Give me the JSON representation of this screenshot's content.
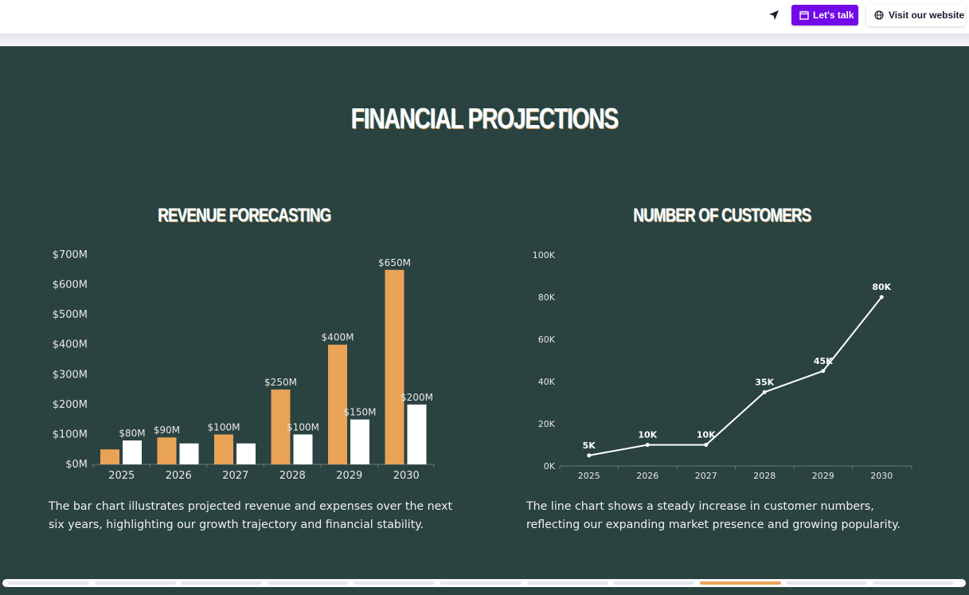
{
  "header": {
    "nav_icon": "send-arrow-icon",
    "lets_talk": {
      "label": "Let's talk",
      "icon": "calendar-icon",
      "color": "#7209e8"
    },
    "visit_website": {
      "label": "Visit our website",
      "icon": "globe-icon"
    }
  },
  "page": {
    "title": "FINANCIAL PROJECTIONS",
    "background": "#2a4240"
  },
  "revenue": {
    "title": "REVENUE FORECASTING",
    "description": "The bar chart illustrates projected revenue and expenses over the next six years, highlighting our growth trajectory and financial stability."
  },
  "customers": {
    "title": "NUMBER OF CUSTOMERS",
    "description": "The line chart shows a steady increase in customer numbers, reflecting our expanding market presence and growing popularity."
  },
  "progress": {
    "segments": 11,
    "active_index": 8,
    "active_color": "#e9a357"
  },
  "chart_data": [
    {
      "type": "bar",
      "title": "REVENUE FORECASTING",
      "categories": [
        "2025",
        "2026",
        "2027",
        "2028",
        "2029",
        "2030"
      ],
      "series": [
        {
          "name": "Revenue",
          "color": "#e9a357",
          "values": [
            50,
            90,
            100,
            250,
            400,
            650
          ],
          "labels": [
            "",
            "$90M",
            "$100M",
            "$250M",
            "$400M",
            "$650M"
          ]
        },
        {
          "name": "Expenses",
          "color": "#ffffff",
          "values": [
            80,
            70,
            70,
            100,
            150,
            200
          ],
          "labels": [
            "$80M",
            "",
            "",
            "$100M",
            "$150M",
            "$200M"
          ]
        }
      ],
      "yticks": [
        "$0M",
        "$100M",
        "$200M",
        "$300M",
        "$400M",
        "$500M",
        "$600M",
        "$700M"
      ],
      "ylim": [
        0,
        700
      ],
      "xlabel": "",
      "ylabel": "",
      "grid": false,
      "legend": "none"
    },
    {
      "type": "line",
      "title": "NUMBER OF CUSTOMERS",
      "categories": [
        "2025",
        "2026",
        "2027",
        "2028",
        "2029",
        "2030"
      ],
      "series": [
        {
          "name": "Customers",
          "color": "#ffffff",
          "values": [
            5,
            10,
            10,
            35,
            45,
            80
          ],
          "labels": [
            "5K",
            "10K",
            "10K",
            "35K",
            "45K",
            "80K"
          ]
        }
      ],
      "yticks": [
        "0K",
        "20K",
        "40K",
        "60K",
        "80K",
        "100K"
      ],
      "ylim": [
        0,
        100
      ],
      "unit": "thousands",
      "xlabel": "",
      "ylabel": "",
      "grid": false,
      "legend": "none"
    }
  ]
}
